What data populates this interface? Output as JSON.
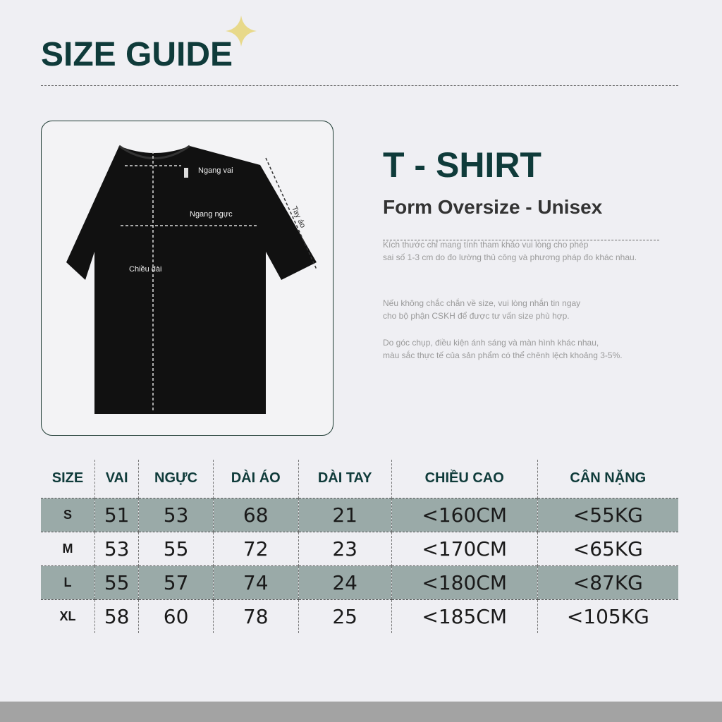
{
  "header": {
    "title": "SIZE GUIDE"
  },
  "diagram": {
    "labels": {
      "shoulder": "Ngang vai",
      "chest": "Ngang ngực",
      "length": "Chiều dài",
      "sleeve": "Tay áo"
    }
  },
  "product": {
    "name": "T - SHIRT",
    "subtitle": "Form Oversize - Unisex"
  },
  "notes": [
    [
      "Kích thước chỉ mang tính tham khảo vui lòng cho phép",
      "sai số 1-3 cm do đo lường thủ công và phương pháp đo khác nhau."
    ],
    [
      "Nếu không chắc chắn về size, vui lòng nhắn tin ngay",
      "cho bộ phận CSKH để được tư vấn size phù hợp."
    ],
    [
      "Do góc chụp, điều kiện ánh sáng và màn hình khác nhau,",
      "màu sắc thực tế của sản phẩm có thể chênh lệch khoảng 3-5%."
    ]
  ],
  "table": {
    "headers": [
      "SIZE",
      "VAI",
      "NGỰC",
      "DÀI ÁO",
      "DÀI TAY",
      "CHIỀU CAO",
      "CÂN NẶNG"
    ],
    "rows": [
      [
        "S",
        "51",
        "53",
        "68",
        "21",
        "<160CM",
        "<55KG"
      ],
      [
        "M",
        "53",
        "55",
        "72",
        "23",
        "<170CM",
        "<65KG"
      ],
      [
        "L",
        "55",
        "57",
        "74",
        "24",
        "<180CM",
        "<87KG"
      ],
      [
        "XL",
        "58",
        "60",
        "78",
        "25",
        "<185CM",
        "<105KG"
      ]
    ]
  },
  "colors": {
    "brand": "#0f3b3a",
    "row_shade": "#9aaaa8",
    "star": "#e8d98a"
  }
}
